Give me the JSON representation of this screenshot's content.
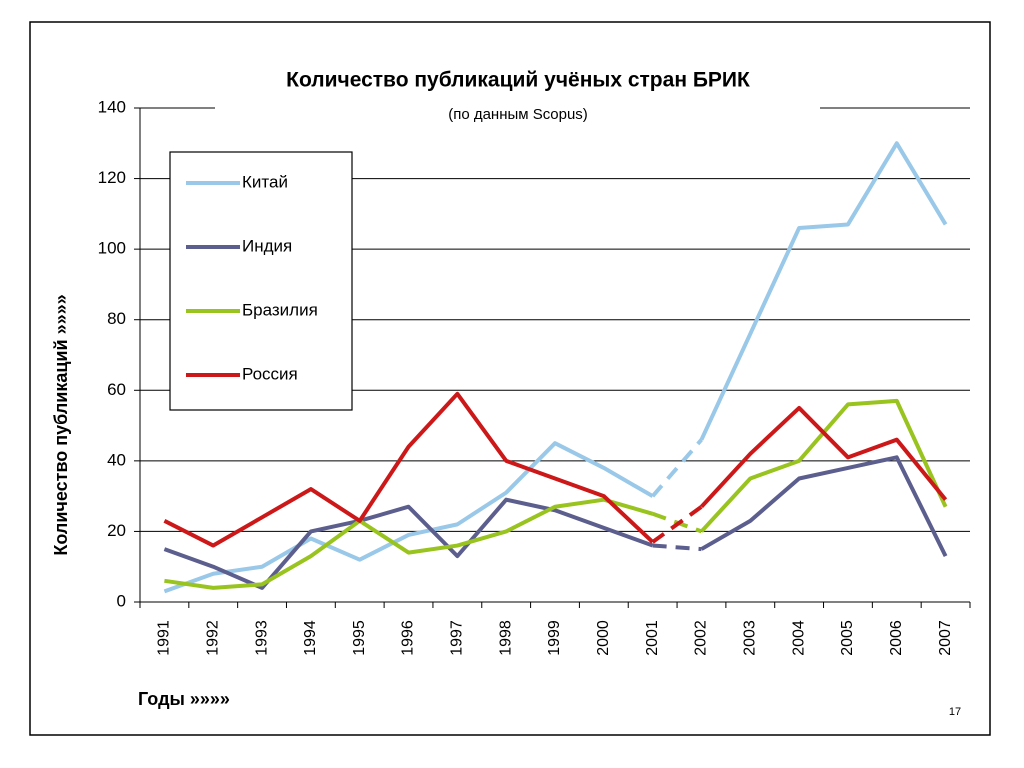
{
  "chart_data": {
    "type": "line",
    "title": "Количество публикаций учёных стран БРИК",
    "subtitle": "(по данным Scopus)",
    "y_label": "Количество публикаций »»»»",
    "x_label": "Годы »»»»",
    "categories": [
      "1991",
      "1992",
      "1993",
      "1994",
      "1995",
      "1996",
      "1997",
      "1998",
      "1999",
      "2000",
      "2001",
      "2002",
      "2003",
      "2004",
      "2005",
      "2006",
      "2007"
    ],
    "dashed_categories": [
      "2001",
      "2002"
    ],
    "series": [
      {
        "name": "Китай",
        "color": "#99c8e8",
        "values": [
          3,
          8,
          10,
          18,
          12,
          19,
          22,
          31,
          45,
          38,
          30,
          46,
          76,
          106,
          107,
          130,
          107
        ]
      },
      {
        "name": "Индия",
        "color": "#5c5e8e",
        "values": [
          15,
          10,
          4,
          20,
          23,
          27,
          13,
          29,
          26,
          21,
          16,
          15,
          23,
          35,
          38,
          41,
          13
        ]
      },
      {
        "name": "Бразилия",
        "color": "#99c31e",
        "values": [
          6,
          4,
          5,
          13,
          23,
          14,
          16,
          20,
          27,
          29,
          25,
          20,
          35,
          40,
          56,
          57,
          27
        ]
      },
      {
        "name": "Россия",
        "color": "#cc1818",
        "values": [
          23,
          16,
          24,
          32,
          23,
          44,
          59,
          40,
          35,
          30,
          17,
          27,
          42,
          55,
          41,
          46,
          29
        ]
      }
    ],
    "ylim": [
      0,
      140
    ],
    "yticks": [
      0,
      20,
      40,
      60,
      80,
      100,
      120,
      140
    ],
    "grid": true
  },
  "slide_number": "17"
}
